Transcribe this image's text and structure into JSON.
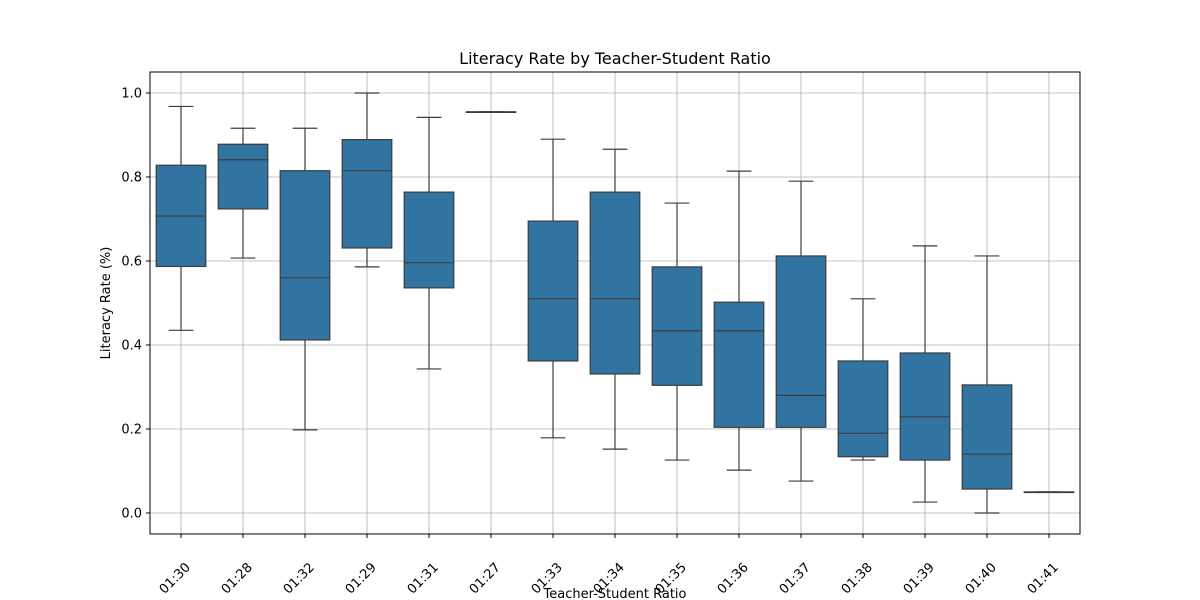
{
  "chart_data": {
    "type": "box",
    "title": "Literacy Rate by Teacher-Student Ratio",
    "xlabel": "Teacher-Student Ratio",
    "ylabel": "Literacy Rate (%)",
    "ylim": [
      -0.05,
      1.05
    ],
    "yticks": [
      0.0,
      0.2,
      0.4,
      0.6,
      0.8,
      1.0
    ],
    "ytick_labels": [
      "0.0",
      "0.2",
      "0.4",
      "0.6",
      "0.8",
      "1.0"
    ],
    "grid": true,
    "box_color": "#3274a1",
    "categories": [
      "01:30",
      "01:28",
      "01:32",
      "01:29",
      "01:31",
      "01:27",
      "01:33",
      "01:34",
      "01:35",
      "01:36",
      "01:37",
      "01:38",
      "01:39",
      "01:40",
      "01:41"
    ],
    "boxes": [
      {
        "whislo": 0.435,
        "q1": 0.587,
        "med": 0.707,
        "q3": 0.828,
        "whishi": 0.968
      },
      {
        "whislo": 0.607,
        "q1": 0.724,
        "med": 0.841,
        "q3": 0.878,
        "whishi": 0.916
      },
      {
        "whislo": 0.198,
        "q1": 0.412,
        "med": 0.56,
        "q3": 0.815,
        "whishi": 0.916
      },
      {
        "whislo": 0.586,
        "q1": 0.631,
        "med": 0.815,
        "q3": 0.889,
        "whishi": 1.0
      },
      {
        "whislo": 0.343,
        "q1": 0.536,
        "med": 0.596,
        "q3": 0.764,
        "whishi": 0.942
      },
      {
        "whislo": 0.955,
        "q1": 0.955,
        "med": 0.955,
        "q3": 0.955,
        "whishi": 0.955
      },
      {
        "whislo": 0.179,
        "q1": 0.362,
        "med": 0.51,
        "q3": 0.695,
        "whishi": 0.89
      },
      {
        "whislo": 0.152,
        "q1": 0.331,
        "med": 0.51,
        "q3": 0.764,
        "whishi": 0.866
      },
      {
        "whislo": 0.126,
        "q1": 0.304,
        "med": 0.434,
        "q3": 0.586,
        "whishi": 0.738
      },
      {
        "whislo": 0.102,
        "q1": 0.204,
        "med": 0.434,
        "q3": 0.502,
        "whishi": 0.814
      },
      {
        "whislo": 0.076,
        "q1": 0.204,
        "med": 0.28,
        "q3": 0.612,
        "whishi": 0.79
      },
      {
        "whislo": 0.126,
        "q1": 0.134,
        "med": 0.19,
        "q3": 0.362,
        "whishi": 0.51
      },
      {
        "whislo": 0.026,
        "q1": 0.126,
        "med": 0.229,
        "q3": 0.381,
        "whishi": 0.636
      },
      {
        "whislo": 0.0,
        "q1": 0.057,
        "med": 0.14,
        "q3": 0.305,
        "whishi": 0.612
      },
      {
        "whislo": 0.05,
        "q1": 0.05,
        "med": 0.05,
        "q3": 0.05,
        "whishi": 0.05
      }
    ]
  }
}
